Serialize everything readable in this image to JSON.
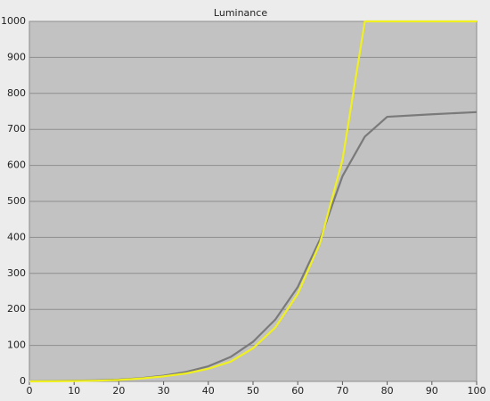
{
  "chart_data": {
    "type": "line",
    "title": "Luminance",
    "x": [
      0,
      5,
      10,
      15,
      20,
      25,
      30,
      35,
      40,
      45,
      50,
      55,
      60,
      65,
      70,
      75,
      80,
      90,
      100
    ],
    "series": [
      {
        "color": "#f0f020",
        "values": [
          0,
          0.3,
          1,
          2,
          4,
          8,
          14,
          22,
          35,
          55,
          92,
          150,
          243,
          385,
          615,
          1000,
          1000,
          1000,
          1000
        ]
      },
      {
        "color": "#7a7a7a",
        "values": [
          0.5,
          1,
          2,
          3,
          5,
          9,
          16,
          26,
          42,
          68,
          110,
          172,
          262,
          395,
          570,
          680,
          735,
          742,
          748
        ]
      }
    ],
    "xlim": [
      0,
      100
    ],
    "xticks": [
      0,
      10,
      20,
      30,
      40,
      50,
      60,
      70,
      80,
      90,
      100
    ],
    "ylim": [
      0,
      1000
    ],
    "yticks": [
      0,
      100,
      200,
      300,
      400,
      500,
      600,
      700,
      800,
      900,
      1000
    ],
    "grid": true
  }
}
